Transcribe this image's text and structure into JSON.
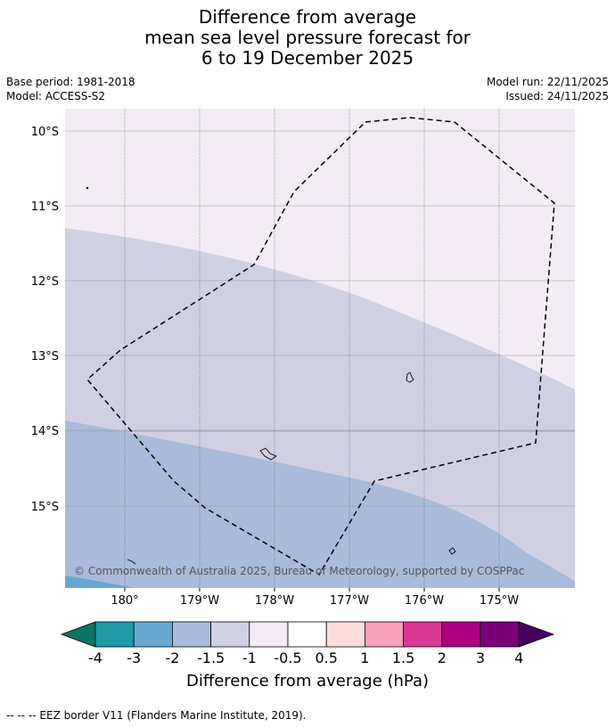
{
  "title": {
    "line1": "Difference from average",
    "line2": "mean sea level pressure forecast for",
    "line3": "6 to 19 December 2025"
  },
  "meta": {
    "base_period": "Base period: 1981-2018",
    "model": "Model: ACCESS-S2",
    "model_run": "Model run: 22/11/2025",
    "issued": "Issued: 24/11/2025"
  },
  "map": {
    "lat_labels": [
      "10°S",
      "11°S",
      "12°S",
      "13°S",
      "14°S",
      "15°S"
    ],
    "lon_labels": [
      "180°",
      "179°W",
      "178°W",
      "177°W",
      "176°W",
      "175°W"
    ],
    "copyright": "© Commonwealth of Australia 2025, Bureau of Meteorology, supported by COSPPac",
    "colors": {
      "band_minus_1_to_minus_0_5": "#f3ecf5",
      "band_minus_1_5_to_minus_1": "#d0d0e5",
      "band_minus_2_to_minus_1_5": "#a8bbdb",
      "band_minus_3_to_minus_2": "#68a8d0"
    }
  },
  "colorbar": {
    "labels": [
      "-4",
      "-3",
      "-2",
      "-1.5",
      "-1",
      "-0.5",
      "0.5",
      "1",
      "1.5",
      "2",
      "3",
      "4"
    ],
    "colors": [
      "#0c7463",
      "#1e9aa6",
      "#68a8d0",
      "#a8bbdb",
      "#d0d0e5",
      "#f3ecf5",
      "#ffffff",
      "#ffdddd",
      "#f8a1bb",
      "#db3797",
      "#ad0083",
      "#7a007a",
      "#45005d"
    ],
    "title": "Difference from average (hPa)"
  },
  "footer": "--  --  -- EEZ border V11 (Flanders Marine Institute, 2019)."
}
